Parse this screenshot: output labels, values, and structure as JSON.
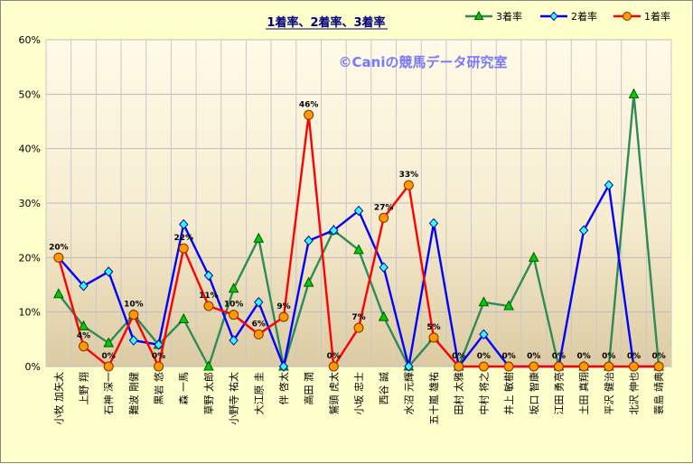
{
  "chart_data": {
    "type": "line",
    "title": "1着率、2着率、3着率",
    "watermark": "©Caniの競馬データ研究室",
    "ylim": [
      0,
      60
    ],
    "yticks": [
      "0%",
      "10%",
      "20%",
      "30%",
      "40%",
      "50%",
      "60%"
    ],
    "categories": [
      "小牧 加矢太",
      "上野 翔",
      "石神 深一",
      "難波 剛健",
      "黒岩 悠",
      "森 一馬",
      "草野 太郎",
      "小野寺 祐太",
      "大江原 圭",
      "伴 啓太",
      "高田 潤",
      "鷲頭 虎太",
      "小坂 忠士",
      "西谷 誠",
      "水沼 元輝",
      "五十嵐 雄祐",
      "田村 太雅",
      "中村 将之",
      "井上 敏樹",
      "坂口 智康",
      "江田 勇亮",
      "土田 真翔",
      "平沢 健治",
      "北沢 伸也",
      "蓑島 靖典"
    ],
    "series": [
      {
        "name": "3着率",
        "color": "#2e8b57",
        "marker": "triangle",
        "marker_color": "#00cc00",
        "values": [
          13.3,
          7.4,
          4.3,
          9.5,
          4.0,
          8.7,
          0,
          14.3,
          23.5,
          0,
          15.4,
          25.0,
          21.4,
          9.1,
          0,
          5.3,
          0,
          11.8,
          11.1,
          20.0,
          0,
          0,
          0,
          50.0,
          0
        ]
      },
      {
        "name": "2着率",
        "color": "#0000ff",
        "marker": "diamond",
        "marker_color": "#33ffff",
        "values": [
          20.0,
          14.8,
          17.4,
          4.8,
          4.0,
          26.1,
          16.7,
          4.8,
          11.8,
          0,
          23.1,
          25.0,
          28.6,
          18.2,
          0,
          26.3,
          0,
          5.9,
          0,
          0,
          0,
          25.0,
          33.3,
          0,
          0
        ]
      },
      {
        "name": "1着率",
        "color": "#ff0000",
        "marker": "circle",
        "marker_color": "#ff9900",
        "values": [
          20.0,
          3.7,
          0,
          9.5,
          0,
          21.7,
          11.1,
          9.5,
          5.9,
          9.1,
          46.2,
          0,
          7.1,
          27.3,
          33.3,
          5.3,
          0,
          0,
          0,
          0,
          0,
          0,
          0,
          0,
          0
        ]
      }
    ],
    "data_labels": [
      "20%",
      "4%",
      "0%",
      "10%",
      "0%",
      "22%",
      "11%",
      "10%",
      "6%",
      "9%",
      "46%",
      "0%",
      "7%",
      "27%",
      "33%",
      "5%",
      "0%",
      "0%",
      "0%",
      "0%",
      "0%",
      "0%",
      "0%",
      "0%",
      "0%"
    ],
    "grid": true,
    "legend": "top-right"
  }
}
